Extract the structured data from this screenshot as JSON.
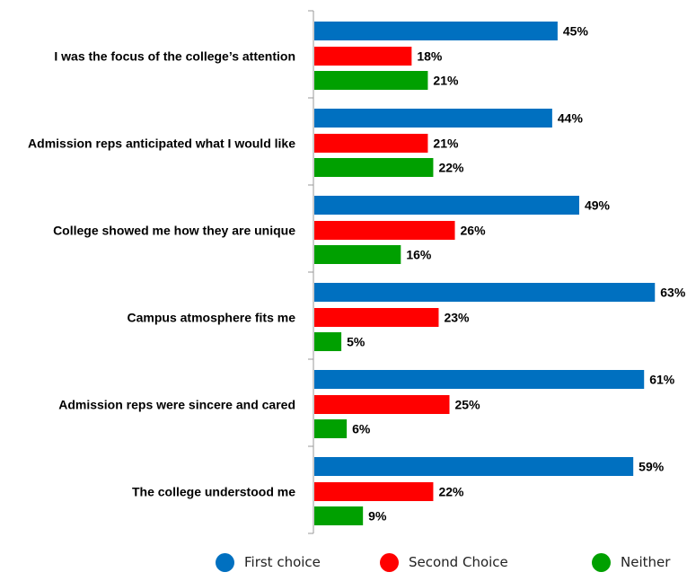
{
  "chart_data": {
    "type": "bar",
    "orientation": "horizontal",
    "categories": [
      "I was the focus of the college’s attention",
      "Admission reps anticipated what I would like",
      "College showed me how they are unique",
      "Campus atmosphere fits me",
      "Admission reps were sincere and cared",
      "The college understood me"
    ],
    "series": [
      {
        "name": "First choice",
        "color": "#0070C0",
        "values": [
          45,
          44,
          49,
          63,
          61,
          59
        ]
      },
      {
        "name": "Second Choice",
        "color": "#FF0000",
        "values": [
          18,
          21,
          26,
          23,
          25,
          22
        ]
      },
      {
        "name": "Neither",
        "color": "#00A000",
        "values": [
          21,
          22,
          16,
          5,
          6,
          9
        ]
      }
    ],
    "value_suffix": "%",
    "xlim": [
      0,
      65
    ],
    "grid": false,
    "legend_position": "bottom"
  },
  "legend": {
    "items": [
      {
        "label": "First choice",
        "color": "#0070C0"
      },
      {
        "label": "Second Choice",
        "color": "#FF0000"
      },
      {
        "label": "Neither",
        "color": "#00A000"
      }
    ]
  }
}
